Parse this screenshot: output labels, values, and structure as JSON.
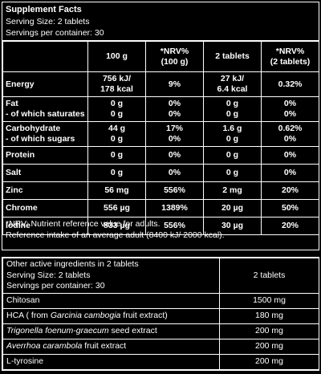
{
  "header": {
    "title": "Supplement Facts",
    "serving_size": "Serving Size: 2 tablets",
    "servings_per_container": "Servings per container: 30"
  },
  "columns": {
    "c1": "100 g",
    "c2a": "*NRV%",
    "c2b": "(100 g)",
    "c3": "2 tablets",
    "c4a": "*NRV%",
    "c4b": "(2 tablets)"
  },
  "rows": [
    {
      "label": "Energy",
      "sub": "",
      "v1a": "756 kJ/",
      "v1b": "178 kcal",
      "n1a": "9%",
      "n1b": "",
      "v2a": "27 kJ/",
      "v2b": "6.4 kcal",
      "n2a": "0.32%",
      "n2b": ""
    },
    {
      "label": "Fat",
      "sub": "- of which saturates",
      "v1a": "0 g",
      "v1b": "0 g",
      "n1a": "0%",
      "n1b": "0%",
      "v2a": "0 g",
      "v2b": "0 g",
      "n2a": "0%",
      "n2b": "0%"
    },
    {
      "label": "Carbohydrate",
      "sub": "- of which sugars",
      "v1a": "44 g",
      "v1b": "0 g",
      "n1a": "17%",
      "n1b": "0%",
      "v2a": "1.6 g",
      "v2b": "0 g",
      "n2a": "0.62%",
      "n2b": "0%"
    },
    {
      "label": "Protein",
      "v1": "0 g",
      "n1": "0%",
      "v2": "0 g",
      "n2": "0%"
    },
    {
      "label": "Salt",
      "v1": "0 g",
      "n1": "0%",
      "v2": "0 g",
      "n2": "0%"
    },
    {
      "label": "Zinc",
      "v1": "56 mg",
      "n1": "556%",
      "v2": "2 mg",
      "n2": "20%"
    },
    {
      "label": "Chrome",
      "v1": "556 µg",
      "n1": "1389%",
      "v2": "20 µg",
      "n2": "50%"
    },
    {
      "label": "Iodine",
      "v1": "833 µg",
      "n1": "556%",
      "v2": "30 µg",
      "n2": "20%"
    }
  ],
  "notes": {
    "nrv": "*NRV: Nutrient reference value for adults.",
    "reference": "Reference intake of an average adult (8400 kJ/ 2000 kcal)."
  },
  "other": {
    "heading": "Other active ingredients in 2 tablets",
    "serving_size": "Serving Size: 2 tablets",
    "servings_per_container": "Servings per container: 30",
    "col_head": "2 tablets",
    "items": [
      {
        "pre": "Chitosan",
        "ital": "",
        "post": "",
        "value": "1500 mg"
      },
      {
        "pre": "HCA ( from ",
        "ital": "Garcinia cambogia",
        "post": " fruit extract)",
        "value": "180 mg"
      },
      {
        "pre": "",
        "ital": "Trigonella foenum-graecum",
        "post": " seed extract",
        "value": "200 mg"
      },
      {
        "pre": "",
        "ital": "Averrhoa carambola",
        "post": " fruit extract",
        "value": "200 mg"
      },
      {
        "pre": "L-tyrosine",
        "ital": "",
        "post": "",
        "value": "200 mg"
      }
    ]
  }
}
